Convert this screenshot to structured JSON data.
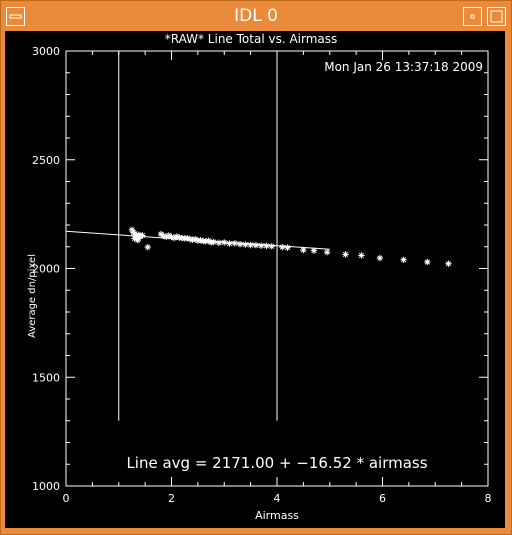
{
  "window": {
    "title": "IDL 0",
    "bg_color": "#e98b3b",
    "buttons": [
      "menu-icon",
      "minimize-icon",
      "maximize-icon"
    ]
  },
  "chart_data": {
    "type": "scatter",
    "title": "*RAW* Line Total vs. Airmass",
    "timestamp": "Mon Jan 26 13:37:18 2009",
    "xlabel": "Airmass",
    "ylabel": "Average dn/pixel",
    "xlim": [
      0,
      8
    ],
    "ylim": [
      1000,
      3000
    ],
    "xticks": [
      "0",
      "2",
      "4",
      "6",
      "8"
    ],
    "yticks": [
      "1000",
      "1500",
      "2000",
      "2500",
      "3000"
    ],
    "marker": "asterisk",
    "color": "#ffffff",
    "points": [
      [
        1.25,
        2178
      ],
      [
        1.28,
        2165
      ],
      [
        1.3,
        2160
      ],
      [
        1.32,
        2150
      ],
      [
        1.34,
        2145
      ],
      [
        1.36,
        2140
      ],
      [
        1.38,
        2155
      ],
      [
        1.4,
        2150
      ],
      [
        1.42,
        2148
      ],
      [
        1.45,
        2152
      ],
      [
        1.3,
        2138
      ],
      [
        1.36,
        2130
      ],
      [
        1.55,
        2098
      ],
      [
        1.8,
        2158
      ],
      [
        1.85,
        2150
      ],
      [
        1.9,
        2145
      ],
      [
        1.95,
        2152
      ],
      [
        2.0,
        2145
      ],
      [
        2.05,
        2140
      ],
      [
        2.1,
        2147
      ],
      [
        2.15,
        2142
      ],
      [
        2.2,
        2140
      ],
      [
        2.25,
        2138
      ],
      [
        2.3,
        2140
      ],
      [
        2.35,
        2135
      ],
      [
        2.4,
        2132
      ],
      [
        2.45,
        2135
      ],
      [
        2.5,
        2128
      ],
      [
        2.55,
        2130
      ],
      [
        2.6,
        2126
      ],
      [
        2.65,
        2125
      ],
      [
        2.7,
        2128
      ],
      [
        2.75,
        2120
      ],
      [
        2.8,
        2122
      ],
      [
        2.9,
        2118
      ],
      [
        3.0,
        2120
      ],
      [
        3.1,
        2115
      ],
      [
        3.2,
        2116
      ],
      [
        3.3,
        2112
      ],
      [
        3.4,
        2110
      ],
      [
        3.5,
        2108
      ],
      [
        3.6,
        2107
      ],
      [
        3.7,
        2105
      ],
      [
        3.8,
        2104
      ],
      [
        3.9,
        2102
      ],
      [
        4.1,
        2098
      ],
      [
        4.2,
        2096
      ],
      [
        4.5,
        2085
      ],
      [
        4.7,
        2082
      ],
      [
        4.95,
        2075
      ],
      [
        5.3,
        2065
      ],
      [
        5.6,
        2060
      ],
      [
        5.95,
        2048
      ],
      [
        6.4,
        2040
      ],
      [
        6.85,
        2030
      ],
      [
        7.25,
        2022
      ]
    ],
    "vlines_x": [
      1.0,
      4.0
    ],
    "vline_range": [
      1300,
      3000
    ],
    "fit": {
      "intercept": 2171.0,
      "slope": -16.52,
      "x_range": [
        0,
        5.0
      ],
      "label": "Line avg = 2171.00 + −16.52 * airmass"
    },
    "grid": false
  }
}
